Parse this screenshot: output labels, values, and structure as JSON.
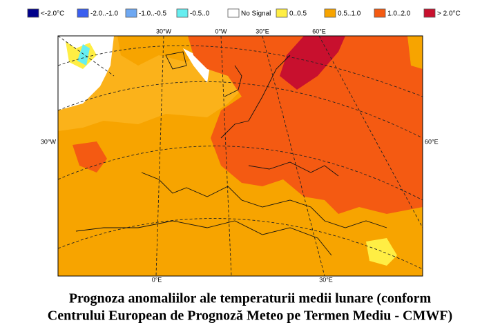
{
  "legend": [
    {
      "label": "<-2.0°C",
      "color": "#00008b"
    },
    {
      "label": "-2.0..-1.0",
      "color": "#3a5ff0"
    },
    {
      "label": "-1.0..-0.5",
      "color": "#6ea8f2"
    },
    {
      "label": "-0.5..0",
      "color": "#66eef0"
    },
    {
      "label": "No Signal",
      "color": "#ffffff"
    },
    {
      "label": "0..0.5",
      "color": "#ffee44"
    },
    {
      "label": "0.5..1.0",
      "color": "#f7a400"
    },
    {
      "label": "1.0..2.0",
      "color": "#f45a12"
    },
    {
      "label": "> 2.0°C",
      "color": "#c8102e"
    }
  ],
  "map": {
    "top_labels": [
      "30°W",
      "0°W",
      "30°E",
      "60°E"
    ],
    "left_label": "30°W",
    "right_label": "60°E",
    "bottom_labels": [
      "0°E",
      "30°E"
    ]
  },
  "caption": [
    "Prognoza anomaliilor ale temperaturii medii lunare (conform",
    "Centrului European de Prognoză Meteo pe Termen Mediu - CMWF)"
  ]
}
